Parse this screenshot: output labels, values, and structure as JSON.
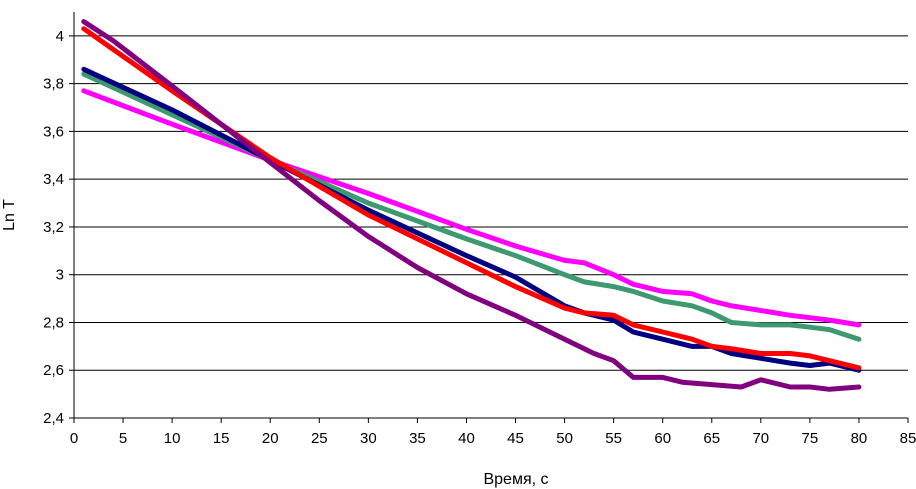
{
  "chart_data": {
    "type": "line",
    "xlabel": "Время, с",
    "ylabel": "Ln T",
    "xlim": [
      0,
      85
    ],
    "ylim": [
      2.4,
      4.1
    ],
    "x_ticks": [
      0,
      5,
      10,
      15,
      20,
      25,
      30,
      35,
      40,
      45,
      50,
      55,
      60,
      65,
      70,
      75,
      80,
      85
    ],
    "x_tick_labels": [
      "0",
      "5",
      "10",
      "15",
      "20",
      "25",
      "30",
      "35",
      "40",
      "45",
      "50",
      "55",
      "60",
      "65",
      "70",
      "75",
      "80",
      "85"
    ],
    "y_ticks": [
      2.4,
      2.6,
      2.8,
      3.0,
      3.2,
      3.4,
      3.6,
      3.8,
      4.0
    ],
    "y_tick_labels": [
      "2,4",
      "2,6",
      "2,8",
      "3",
      "3,2",
      "3,4",
      "3,6",
      "3,8",
      "4"
    ],
    "grid": "horizontal",
    "legend": "none",
    "series": [
      {
        "color": "#ff00ff",
        "x": [
          1,
          10,
          20,
          30,
          40,
          45,
          50,
          52,
          55,
          57,
          60,
          63,
          65,
          67,
          70,
          73,
          75,
          77,
          80
        ],
        "y": [
          3.77,
          3.63,
          3.48,
          3.34,
          3.19,
          3.12,
          3.06,
          3.05,
          3.0,
          2.96,
          2.93,
          2.92,
          2.89,
          2.87,
          2.85,
          2.83,
          2.82,
          2.81,
          2.79
        ]
      },
      {
        "color": "#3d9970",
        "x": [
          1,
          10,
          20,
          30,
          40,
          45,
          50,
          52,
          55,
          57,
          60,
          63,
          65,
          67,
          70,
          73,
          75,
          77,
          80
        ],
        "y": [
          3.84,
          3.67,
          3.48,
          3.3,
          3.15,
          3.08,
          3.0,
          2.97,
          2.95,
          2.93,
          2.89,
          2.87,
          2.84,
          2.8,
          2.79,
          2.79,
          2.78,
          2.77,
          2.73
        ]
      },
      {
        "color": "#000080",
        "x": [
          1,
          10,
          20,
          30,
          40,
          45,
          50,
          52,
          55,
          57,
          60,
          63,
          65,
          67,
          70,
          73,
          75,
          77,
          80
        ],
        "y": [
          3.86,
          3.69,
          3.48,
          3.27,
          3.08,
          2.99,
          2.87,
          2.84,
          2.81,
          2.76,
          2.73,
          2.7,
          2.7,
          2.67,
          2.65,
          2.63,
          2.62,
          2.63,
          2.6
        ]
      },
      {
        "color": "#ff0000",
        "x": [
          1,
          10,
          20,
          30,
          40,
          45,
          50,
          52,
          55,
          57,
          60,
          63,
          65,
          67,
          70,
          73,
          75,
          77,
          80
        ],
        "y": [
          4.03,
          3.77,
          3.49,
          3.25,
          3.05,
          2.95,
          2.86,
          2.84,
          2.83,
          2.79,
          2.76,
          2.73,
          2.7,
          2.69,
          2.67,
          2.67,
          2.66,
          2.64,
          2.61
        ]
      },
      {
        "color": "#800080",
        "x": [
          1,
          4,
          10,
          20,
          25,
          30,
          35,
          40,
          45,
          50,
          53,
          55,
          57,
          60,
          62,
          65,
          68,
          70,
          73,
          75,
          77,
          80
        ],
        "y": [
          4.06,
          3.98,
          3.79,
          3.47,
          3.31,
          3.16,
          3.03,
          2.92,
          2.83,
          2.73,
          2.67,
          2.64,
          2.57,
          2.57,
          2.55,
          2.54,
          2.53,
          2.56,
          2.53,
          2.53,
          2.52,
          2.53
        ]
      }
    ]
  }
}
